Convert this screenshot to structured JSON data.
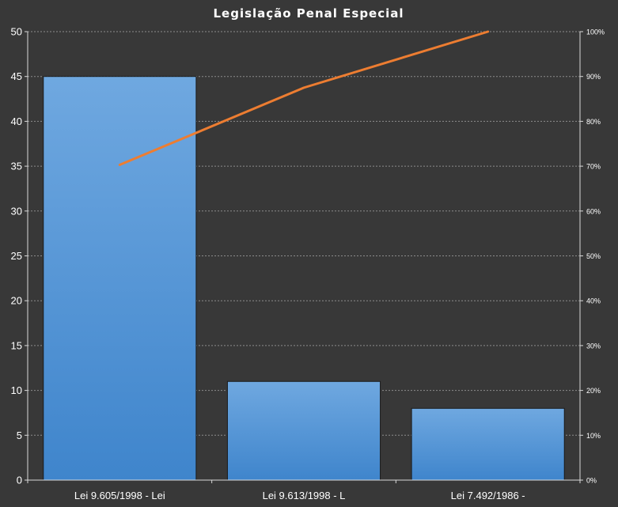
{
  "chart_data": {
    "type": "bar",
    "title": "Legislação Penal Especial",
    "categories": [
      "Lei 9.605/1998 - Lei",
      "Lei 9.613/1998 - L",
      "Lei 7.492/1986 -"
    ],
    "series": [
      {
        "type": "bar",
        "values": [
          45,
          11,
          8
        ],
        "color": "#5b9bd5",
        "axis": "left"
      },
      {
        "type": "line",
        "values": [
          70.3,
          87.5,
          100
        ],
        "color": "#ed7d31",
        "axis": "right"
      }
    ],
    "y_left": {
      "ylim": [
        0,
        50
      ],
      "ticks": [
        "0",
        "5",
        "10",
        "15",
        "20",
        "25",
        "30",
        "35",
        "40",
        "45",
        "50"
      ]
    },
    "y_right": {
      "ylim": [
        0,
        100
      ],
      "ticks": [
        "0%",
        "10%",
        "20%",
        "30%",
        "40%",
        "50%",
        "60%",
        "70%",
        "80%",
        "90%",
        "100%"
      ]
    },
    "grid": true,
    "legend": "none"
  }
}
